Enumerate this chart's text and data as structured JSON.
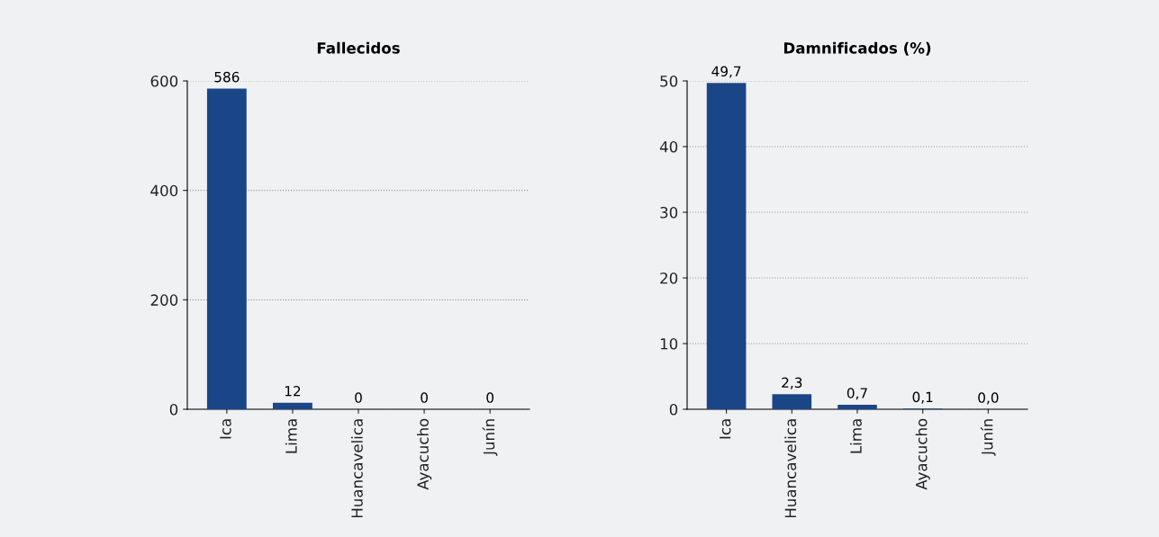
{
  "chart_data": [
    {
      "type": "bar",
      "title": "Fallecidos",
      "categories": [
        "Ica",
        "Lima",
        "Huancavelica",
        "Ayacucho",
        "Junín"
      ],
      "values": [
        586,
        12,
        0,
        0,
        0
      ],
      "color": "#1a4688",
      "ylim": [
        0,
        600
      ],
      "yticks": [
        0,
        200,
        400,
        600
      ],
      "grid": "y",
      "data_labels": true
    },
    {
      "type": "bar",
      "title": "Damnificados (%)",
      "categories": [
        "Ica",
        "Huancavelica",
        "Lima",
        "Ayacucho",
        "Junín"
      ],
      "values": [
        49.7,
        2.3,
        0.7,
        0.1,
        0.0
      ],
      "value_labels": [
        "49,7",
        "2,3",
        "0,7",
        "0,1",
        "0,0"
      ],
      "color": "#1a4688",
      "ylim": [
        0,
        50
      ],
      "yticks": [
        0,
        10,
        20,
        30,
        40,
        50
      ],
      "grid": "y"
    }
  ]
}
